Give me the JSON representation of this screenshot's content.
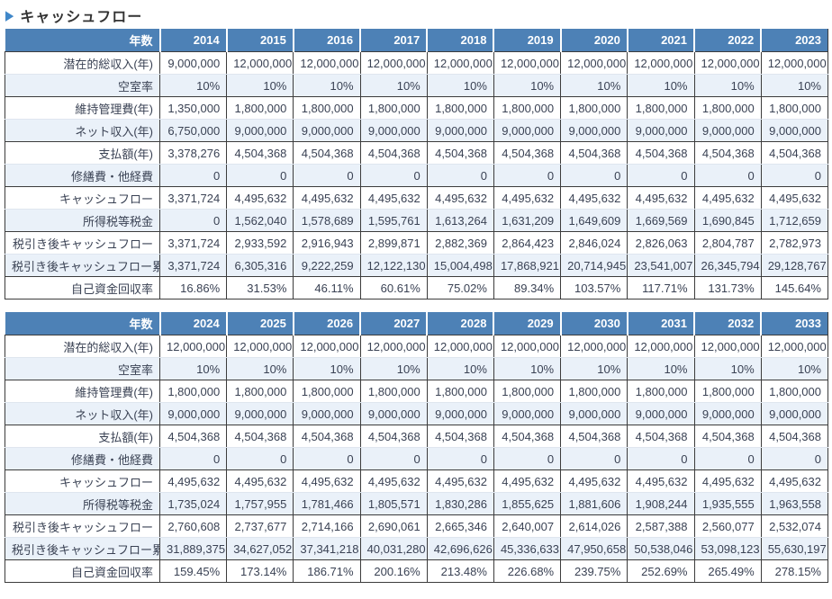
{
  "title": "キャッシュフロー",
  "marker": "▶",
  "colors": {
    "header_bg": "#4D81B6",
    "header_text": "#FFFFFF",
    "row_alt_bg": "#EAF1F9",
    "border_dark": "#3C3C3C",
    "border_light": "#DFE6EF",
    "cell_text": "#3A4254",
    "marker_blue": "#3F87C9"
  },
  "tables": [
    {
      "corner_label": "年数",
      "years": [
        "2014",
        "2015",
        "2016",
        "2017",
        "2018",
        "2019",
        "2020",
        "2021",
        "2022",
        "2023"
      ],
      "rows": [
        {
          "label": "潜在的総収入(年)",
          "values": [
            "9,000,000",
            "12,000,000",
            "12,000,000",
            "12,000,000",
            "12,000,000",
            "12,000,000",
            "12,000,000",
            "12,000,000",
            "12,000,000",
            "12,000,000"
          ]
        },
        {
          "label": "空室率",
          "values": [
            "10%",
            "10%",
            "10%",
            "10%",
            "10%",
            "10%",
            "10%",
            "10%",
            "10%",
            "10%"
          ]
        },
        {
          "label": "維持管理費(年)",
          "values": [
            "1,350,000",
            "1,800,000",
            "1,800,000",
            "1,800,000",
            "1,800,000",
            "1,800,000",
            "1,800,000",
            "1,800,000",
            "1,800,000",
            "1,800,000"
          ]
        },
        {
          "label": "ネット収入(年)",
          "values": [
            "6,750,000",
            "9,000,000",
            "9,000,000",
            "9,000,000",
            "9,000,000",
            "9,000,000",
            "9,000,000",
            "9,000,000",
            "9,000,000",
            "9,000,000"
          ]
        },
        {
          "label": "支払額(年)",
          "values": [
            "3,378,276",
            "4,504,368",
            "4,504,368",
            "4,504,368",
            "4,504,368",
            "4,504,368",
            "4,504,368",
            "4,504,368",
            "4,504,368",
            "4,504,368"
          ]
        },
        {
          "label": "修繕費・他経費",
          "values": [
            "0",
            "0",
            "0",
            "0",
            "0",
            "0",
            "0",
            "0",
            "0",
            "0"
          ]
        },
        {
          "label": "キャッシュフロー",
          "values": [
            "3,371,724",
            "4,495,632",
            "4,495,632",
            "4,495,632",
            "4,495,632",
            "4,495,632",
            "4,495,632",
            "4,495,632",
            "4,495,632",
            "4,495,632"
          ]
        },
        {
          "label": "所得税等税金",
          "values": [
            "0",
            "1,562,040",
            "1,578,689",
            "1,595,761",
            "1,613,264",
            "1,631,209",
            "1,649,609",
            "1,669,569",
            "1,690,845",
            "1,712,659"
          ]
        },
        {
          "label": "税引き後キャッシュフロー",
          "values": [
            "3,371,724",
            "2,933,592",
            "2,916,943",
            "2,899,871",
            "2,882,369",
            "2,864,423",
            "2,846,024",
            "2,826,063",
            "2,804,787",
            "2,782,973"
          ]
        },
        {
          "label": "税引き後キャッシュフロー累計",
          "values": [
            "3,371,724",
            "6,305,316",
            "9,222,259",
            "12,122,130",
            "15,004,498",
            "17,868,921",
            "20,714,945",
            "23,541,007",
            "26,345,794",
            "29,128,767"
          ]
        },
        {
          "label": "自己資金回収率",
          "values": [
            "16.86%",
            "31.53%",
            "46.11%",
            "60.61%",
            "75.02%",
            "89.34%",
            "103.57%",
            "117.71%",
            "131.73%",
            "145.64%"
          ]
        }
      ]
    },
    {
      "corner_label": "年数",
      "years": [
        "2024",
        "2025",
        "2026",
        "2027",
        "2028",
        "2029",
        "2030",
        "2031",
        "2032",
        "2033"
      ],
      "rows": [
        {
          "label": "潜在的総収入(年)",
          "values": [
            "12,000,000",
            "12,000,000",
            "12,000,000",
            "12,000,000",
            "12,000,000",
            "12,000,000",
            "12,000,000",
            "12,000,000",
            "12,000,000",
            "12,000,000"
          ]
        },
        {
          "label": "空室率",
          "values": [
            "10%",
            "10%",
            "10%",
            "10%",
            "10%",
            "10%",
            "10%",
            "10%",
            "10%",
            "10%"
          ]
        },
        {
          "label": "維持管理費(年)",
          "values": [
            "1,800,000",
            "1,800,000",
            "1,800,000",
            "1,800,000",
            "1,800,000",
            "1,800,000",
            "1,800,000",
            "1,800,000",
            "1,800,000",
            "1,800,000"
          ]
        },
        {
          "label": "ネット収入(年)",
          "values": [
            "9,000,000",
            "9,000,000",
            "9,000,000",
            "9,000,000",
            "9,000,000",
            "9,000,000",
            "9,000,000",
            "9,000,000",
            "9,000,000",
            "9,000,000"
          ]
        },
        {
          "label": "支払額(年)",
          "values": [
            "4,504,368",
            "4,504,368",
            "4,504,368",
            "4,504,368",
            "4,504,368",
            "4,504,368",
            "4,504,368",
            "4,504,368",
            "4,504,368",
            "4,504,368"
          ]
        },
        {
          "label": "修繕費・他経費",
          "values": [
            "0",
            "0",
            "0",
            "0",
            "0",
            "0",
            "0",
            "0",
            "0",
            "0"
          ]
        },
        {
          "label": "キャッシュフロー",
          "values": [
            "4,495,632",
            "4,495,632",
            "4,495,632",
            "4,495,632",
            "4,495,632",
            "4,495,632",
            "4,495,632",
            "4,495,632",
            "4,495,632",
            "4,495,632"
          ]
        },
        {
          "label": "所得税等税金",
          "values": [
            "1,735,024",
            "1,757,955",
            "1,781,466",
            "1,805,571",
            "1,830,286",
            "1,855,625",
            "1,881,606",
            "1,908,244",
            "1,935,555",
            "1,963,558"
          ]
        },
        {
          "label": "税引き後キャッシュフロー",
          "values": [
            "2,760,608",
            "2,737,677",
            "2,714,166",
            "2,690,061",
            "2,665,346",
            "2,640,007",
            "2,614,026",
            "2,587,388",
            "2,560,077",
            "2,532,074"
          ]
        },
        {
          "label": "税引き後キャッシュフロー累計",
          "values": [
            "31,889,375",
            "34,627,052",
            "37,341,218",
            "40,031,280",
            "42,696,626",
            "45,336,633",
            "47,950,658",
            "50,538,046",
            "53,098,123",
            "55,630,197"
          ]
        },
        {
          "label": "自己資金回収率",
          "values": [
            "159.45%",
            "173.14%",
            "186.71%",
            "200.16%",
            "213.48%",
            "226.68%",
            "239.75%",
            "252.69%",
            "265.49%",
            "278.15%"
          ]
        }
      ]
    }
  ]
}
